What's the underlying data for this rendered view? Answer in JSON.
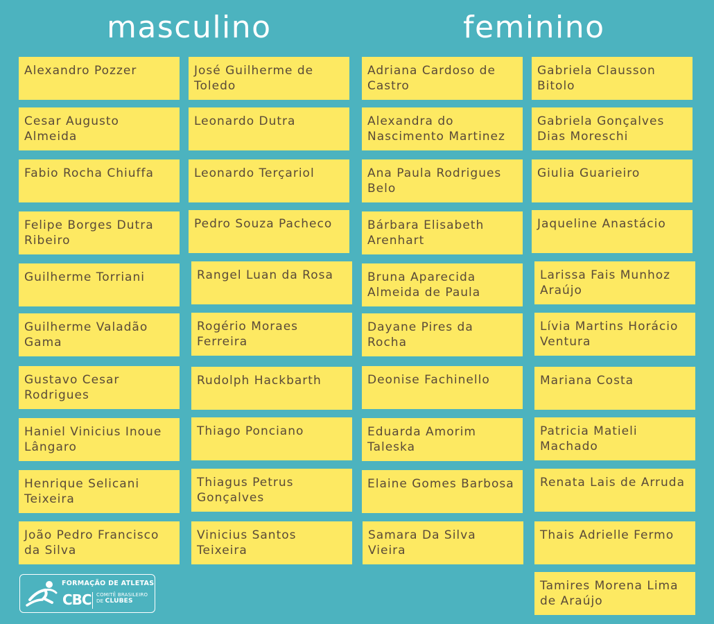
{
  "headings": {
    "masculino": "masculino",
    "feminino": "feminino"
  },
  "masculino": {
    "col1": [
      "Alexandro Pozzer",
      "Cesar Augusto Almeida",
      "Fabio Rocha Chiuffa",
      "Felipe Borges Dutra Ribeiro",
      "Guilherme Torriani",
      "Guilherme Valadão Gama",
      "Gustavo Cesar Rodrigues",
      "Haniel Vinicius Inoue Lângaro",
      "Henrique Selicani Teixeira",
      "João Pedro Francisco da Silva"
    ],
    "col2": [
      "José Guilherme de Toledo",
      "Leonardo Dutra",
      "Leonardo Terçariol",
      "Pedro Souza Pacheco",
      "Rangel Luan da Rosa",
      "Rogério Moraes Ferreira",
      "Rudolph Hackbarth",
      "Thiago Ponciano",
      "Thiagus Petrus Gonçalves",
      "Vinicius Santos Teixeira"
    ]
  },
  "feminino": {
    "col1": [
      "Adriana Cardoso de Castro",
      "Alexandra do Nascimento Martinez",
      "Ana Paula Rodrigues Belo",
      "Bárbara Elisabeth Arenhart",
      "Bruna Aparecida Almeida de Paula",
      "Dayane Pires da Rocha",
      "Deonise Fachinello",
      "Eduarda Amorim Taleska",
      "Elaine Gomes Barbosa",
      "Samara Da Silva Vieira"
    ],
    "col2": [
      "Gabriela Clausson Bitolo",
      "Gabriela Gonçalves Dias Moreschi",
      "Giulia Guarieiro",
      "Jaqueline Anastácio",
      "Larissa Fais Munhoz Araújo",
      "Lívia Martins Horácio Ventura",
      "Mariana Costa",
      "Patricia Matieli Machado",
      "Renata Lais de Arruda",
      "Thais Adrielle Fermo",
      "Tamires Morena Lima de Araújo"
    ]
  },
  "logo": {
    "title": "FORMAÇÃO DE ATLETAS",
    "brand": "CBC",
    "sub_line1": "COMITÊ BRASILEIRO",
    "sub_line2": "DE",
    "sub_line3": "CLUBES"
  },
  "colors": {
    "background": "#4cb3bf",
    "card": "#fde962",
    "card_text": "#5a4a38",
    "heading": "#ffffff"
  }
}
